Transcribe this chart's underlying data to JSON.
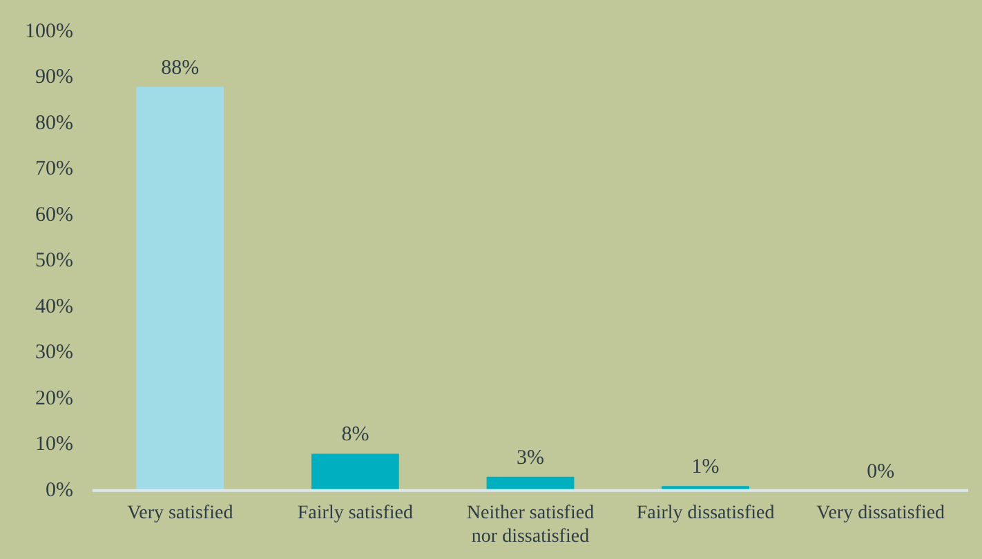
{
  "chart_data": {
    "type": "bar",
    "categories": [
      "Very satisfied",
      "Fairly satisfied",
      "Neither satisfied\nnor dissatisfied",
      "Fairly dissatisfied",
      "Very dissatisfied"
    ],
    "values": [
      88,
      8,
      3,
      1,
      0
    ],
    "colors": [
      "#a0dbe8",
      "#00b0c0",
      "#00b0c0",
      "#00b0c0",
      "#00b0c0"
    ],
    "value_labels": [
      "88%",
      "8%",
      "3%",
      "1%",
      "0%"
    ],
    "ylim": [
      0,
      100
    ],
    "yticks": [
      {
        "value": 0,
        "label": "0%"
      },
      {
        "value": 10,
        "label": "10%"
      },
      {
        "value": 20,
        "label": "20%"
      },
      {
        "value": 30,
        "label": "30%"
      },
      {
        "value": 40,
        "label": "40%"
      },
      {
        "value": 50,
        "label": "50%"
      },
      {
        "value": 60,
        "label": "60%"
      },
      {
        "value": 70,
        "label": "70%"
      },
      {
        "value": 80,
        "label": "80%"
      },
      {
        "value": 90,
        "label": "90%"
      },
      {
        "value": 100,
        "label": "100%"
      }
    ],
    "grid": false,
    "legend": false
  }
}
